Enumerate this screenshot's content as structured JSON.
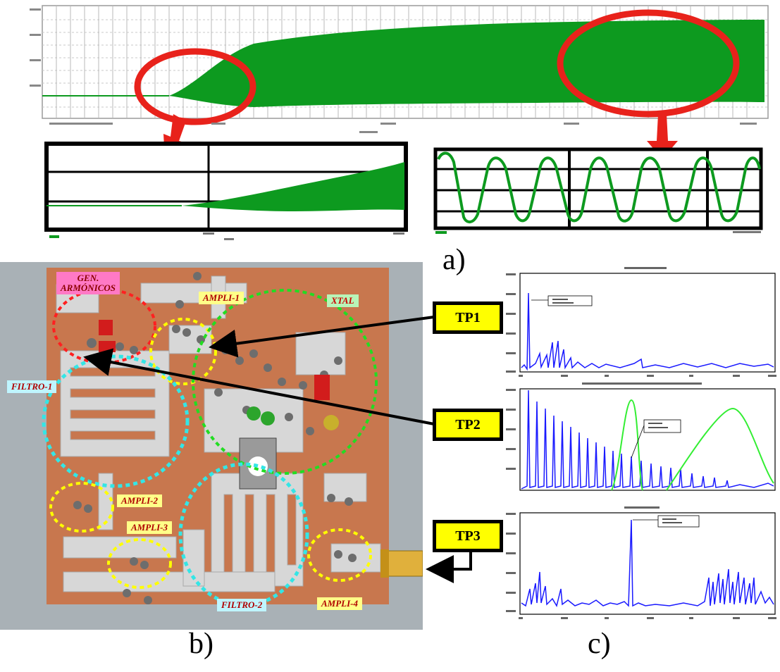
{
  "panels": {
    "a": "a)",
    "b": "b)",
    "c": "c)"
  },
  "test_points": {
    "tp1": "TP1",
    "tp2": "TP2",
    "tp3": "TP3"
  },
  "board_labels": {
    "gen": "GEN.\nARMÓNICOS",
    "ampli1": "AMPLI-1",
    "xtal": "XTAL",
    "filtro1": "FILTRO-1",
    "ampli2": "AMPLI-2",
    "ampli3": "AMPLI-3",
    "filtro2": "FILTRO-2",
    "ampli4": "AMPLI-4"
  },
  "colors": {
    "waveform_green": "#0d9a1f",
    "zoom_circle_red": "#e8221b",
    "spectrum_blue": "#1a1aff",
    "filter_response_green": "#33ee33",
    "pcb_copper": "#c8774e",
    "tp_yellow": "#ffff00"
  }
}
